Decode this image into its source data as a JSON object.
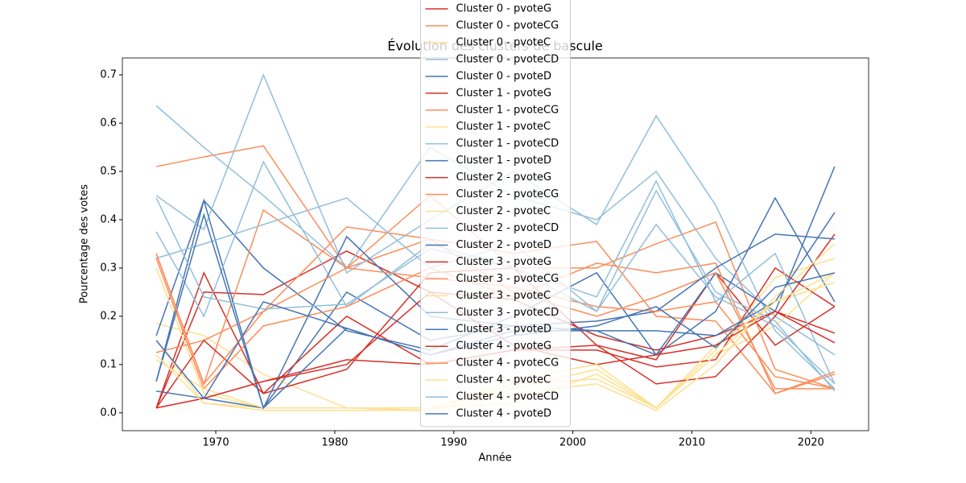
{
  "chart_data": {
    "type": "line",
    "title": "Évolution des clusters de bascule",
    "x_label": "Année",
    "y_label": "Pourcentage des votes",
    "x": [
      1965,
      1969,
      1974,
      1981,
      1988,
      1995,
      2002,
      2007,
      2012,
      2017,
      2022
    ],
    "xlim": [
      1962.15,
      2024.85
    ],
    "xticks": [
      1970,
      1980,
      1990,
      2000,
      2010,
      2020
    ],
    "ylim": [
      -0.037,
      0.735
    ],
    "yticks": [
      {
        "value": 0,
        "label": "0.0"
      },
      0.1,
      0.2,
      0.3,
      0.4,
      0.5,
      0.6,
      0.7
    ],
    "grid": false,
    "legend": "upper center",
    "series": [
      {
        "name": "Cluster 0 - pvoteG",
        "color": "#d73027",
        "values": [
          0.01,
          0.25,
          0.245,
          0.335,
          0.25,
          0.235,
          0.16,
          0.13,
          0.16,
          0.21,
          0.165
        ]
      },
      {
        "name": "Cluster 0 - pvoteCG",
        "color": "#fc8d59",
        "values": [
          0.51,
          0.53,
          0.553,
          0.3,
          0.36,
          0.33,
          0.355,
          0.2,
          0.19,
          0.04,
          0.08
        ]
      },
      {
        "name": "Cluster 0 - pvoteC",
        "color": "#fee090",
        "values": [
          0.185,
          0.16,
          0.08,
          0.01,
          0.01,
          0.02,
          0.08,
          0.01,
          0.13,
          0.28,
          0.32
        ]
      },
      {
        "name": "Cluster 0 - pvoteCD",
        "color": "#91bfdb",
        "values": [
          0.636,
          0.55,
          0.45,
          0.3,
          0.55,
          0.45,
          0.4,
          0.5,
          0.32,
          0.2,
          0.12
        ]
      },
      {
        "name": "Cluster 0 - pvoteD",
        "color": "#4575b4",
        "values": [
          0.16,
          0.44,
          0.3,
          0.17,
          0.13,
          0.2,
          0.29,
          0.12,
          0.21,
          0.445,
          0.23
        ]
      },
      {
        "name": "Cluster 1 - pvoteG",
        "color": "#d73027",
        "values": [
          0.01,
          0.29,
          0.04,
          0.09,
          0.29,
          0.3,
          0.14,
          0.11,
          0.29,
          0.14,
          0.22
        ]
      },
      {
        "name": "Cluster 1 - pvoteCG",
        "color": "#fc8d59",
        "values": [
          0.33,
          0.06,
          0.42,
          0.3,
          0.45,
          0.3,
          0.3,
          0.35,
          0.395,
          0.09,
          0.05
        ]
      },
      {
        "name": "Cluster 1 - pvoteC",
        "color": "#fee090",
        "values": [
          0.3,
          0.04,
          0.01,
          0.01,
          0.01,
          0.05,
          0.09,
          0.01,
          0.12,
          0.18,
          0.29
        ]
      },
      {
        "name": "Cluster 1 - pvoteCD",
        "color": "#91bfdb",
        "values": [
          0.45,
          0.38,
          0.7,
          0.29,
          0.4,
          0.5,
          0.39,
          0.615,
          0.43,
          0.17,
          0.05
        ]
      },
      {
        "name": "Cluster 1 - pvoteD",
        "color": "#4575b4",
        "values": [
          0.065,
          0.44,
          0.01,
          0.25,
          0.15,
          0.18,
          0.17,
          0.12,
          0.29,
          0.21,
          0.51
        ]
      },
      {
        "name": "Cluster 2 - pvoteG",
        "color": "#d73027",
        "values": [
          0.01,
          0.03,
          0.065,
          0.11,
          0.1,
          0.13,
          0.13,
          0.095,
          0.11,
          0.3,
          0.22
        ]
      },
      {
        "name": "Cluster 2 - pvoteCG",
        "color": "#fc8d59",
        "values": [
          0.125,
          0.15,
          0.21,
          0.385,
          0.36,
          0.25,
          0.2,
          0.24,
          0.29,
          0.05,
          0.05
        ]
      },
      {
        "name": "Cluster 2 - pvoteC",
        "color": "#fee090",
        "values": [
          0.15,
          0.02,
          0.01,
          0.01,
          0.01,
          0.06,
          0.07,
          0.01,
          0.14,
          0.23,
          0.27
        ]
      },
      {
        "name": "Cluster 2 - pvoteCD",
        "color": "#91bfdb",
        "values": [
          0.375,
          0.2,
          0.52,
          0.22,
          0.35,
          0.3,
          0.24,
          0.48,
          0.23,
          0.33,
          0.06
        ]
      },
      {
        "name": "Cluster 2 - pvoteD",
        "color": "#4575b4",
        "values": [
          0.045,
          0.03,
          0.01,
          0.175,
          0.12,
          0.17,
          0.17,
          0.17,
          0.16,
          0.23,
          0.415
        ]
      },
      {
        "name": "Cluster 3 - pvoteG",
        "color": "#d73027",
        "values": [
          0.01,
          0.15,
          0.04,
          0.2,
          0.1,
          0.13,
          0.14,
          0.06,
          0.075,
          0.2,
          0.37
        ]
      },
      {
        "name": "Cluster 3 - pvoteCG",
        "color": "#fc8d59",
        "values": [
          0.32,
          0.05,
          0.18,
          0.22,
          0.3,
          0.24,
          0.31,
          0.29,
          0.31,
          0.04,
          0.085
        ]
      },
      {
        "name": "Cluster 3 - pvoteC",
        "color": "#fee090",
        "values": [
          0.11,
          0.05,
          0.01,
          0.01,
          0.005,
          0.04,
          0.06,
          0.005,
          0.1,
          0.24,
          0.35
        ]
      },
      {
        "name": "Cluster 3 - pvoteCD",
        "color": "#91bfdb",
        "values": [
          0.32,
          0.35,
          0.39,
          0.445,
          0.3,
          0.35,
          0.21,
          0.39,
          0.24,
          0.18,
          0.06
        ]
      },
      {
        "name": "Cluster 3 - pvoteD",
        "color": "#4575b4",
        "values": [
          0.065,
          0.41,
          0.01,
          0.365,
          0.2,
          0.18,
          0.19,
          0.21,
          0.3,
          0.37,
          0.36
        ]
      },
      {
        "name": "Cluster 4 - pvoteG",
        "color": "#d73027",
        "values": [
          0.01,
          0.03,
          0.065,
          0.1,
          0.25,
          0.14,
          0.1,
          0.12,
          0.14,
          0.21,
          0.145
        ]
      },
      {
        "name": "Cluster 4 - pvoteCG",
        "color": "#fc8d59",
        "values": [
          0.33,
          0.06,
          0.21,
          0.3,
          0.28,
          0.26,
          0.22,
          0.21,
          0.23,
          0.075,
          0.05
        ]
      },
      {
        "name": "Cluster 4 - pvoteC",
        "color": "#fee090",
        "values": [
          0.12,
          0.02,
          0.005,
          0.005,
          0.005,
          0.07,
          0.1,
          0.01,
          0.12,
          0.23,
          0.29
        ]
      },
      {
        "name": "Cluster 4 - pvoteCD",
        "color": "#91bfdb",
        "values": [
          0.445,
          0.24,
          0.215,
          0.225,
          0.34,
          0.3,
          0.21,
          0.46,
          0.25,
          0.19,
          0.045
        ]
      },
      {
        "name": "Cluster 4 - pvoteD",
        "color": "#4575b4",
        "values": [
          0.15,
          0.03,
          0.23,
          0.175,
          0.12,
          0.16,
          0.18,
          0.22,
          0.135,
          0.26,
          0.29
        ]
      }
    ]
  }
}
